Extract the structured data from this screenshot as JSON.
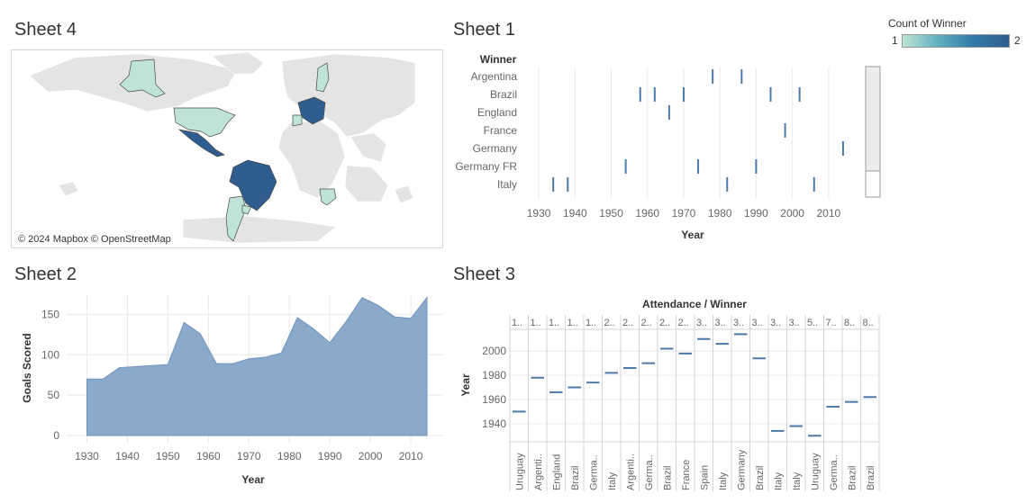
{
  "sheet4": {
    "title": "Sheet 4",
    "credit": "© 2024 Mapbox © OpenStreetMap"
  },
  "legend": {
    "title": "Count of Winner",
    "min_label": "1",
    "max_label": "2",
    "colors": {
      "low": "#bfe3d6",
      "high": "#2f5d8f"
    }
  },
  "colors": {
    "mark": "#4e79a7",
    "area_fill": "#8aa9cb",
    "area_stroke": "#6f93bd",
    "grid": "#e9e9e9",
    "text": "#666666"
  },
  "chart_data": [
    {
      "id": "sheet1",
      "title": "Sheet 1",
      "type": "scatter",
      "xlabel": "Year",
      "ylabel": "Winner",
      "categories": [
        "Argentina",
        "Brazil",
        "England",
        "France",
        "Germany",
        "Germany FR",
        "Italy"
      ],
      "points": [
        {
          "winner": "Argentina",
          "year": 1978
        },
        {
          "winner": "Argentina",
          "year": 1986
        },
        {
          "winner": "Brazil",
          "year": 1958
        },
        {
          "winner": "Brazil",
          "year": 1962
        },
        {
          "winner": "Brazil",
          "year": 1970
        },
        {
          "winner": "Brazil",
          "year": 1994
        },
        {
          "winner": "Brazil",
          "year": 2002
        },
        {
          "winner": "England",
          "year": 1966
        },
        {
          "winner": "France",
          "year": 1998
        },
        {
          "winner": "Germany",
          "year": 2014
        },
        {
          "winner": "Germany FR",
          "year": 1954
        },
        {
          "winner": "Germany FR",
          "year": 1974
        },
        {
          "winner": "Germany FR",
          "year": 1990
        },
        {
          "winner": "Italy",
          "year": 1934
        },
        {
          "winner": "Italy",
          "year": 1938
        },
        {
          "winner": "Italy",
          "year": 1982
        },
        {
          "winner": "Italy",
          "year": 2006
        }
      ],
      "xticks": [
        1930,
        1940,
        1950,
        1960,
        1970,
        1980,
        1990,
        2000,
        2010
      ],
      "xlim": [
        1925,
        2017
      ]
    },
    {
      "id": "sheet2",
      "title": "Sheet 2",
      "type": "area",
      "xlabel": "Year",
      "ylabel": "Goals Scored",
      "x": [
        1930,
        1934,
        1938,
        1950,
        1954,
        1958,
        1962,
        1966,
        1970,
        1974,
        1978,
        1982,
        1986,
        1990,
        1994,
        1998,
        2002,
        2006,
        2010,
        2014
      ],
      "y": [
        70,
        70,
        84,
        88,
        140,
        126,
        89,
        89,
        95,
        97,
        102,
        146,
        132,
        115,
        141,
        171,
        161,
        147,
        145,
        171
      ],
      "xticks": [
        1930,
        1940,
        1950,
        1960,
        1970,
        1980,
        1990,
        2000,
        2010
      ],
      "yticks": [
        0,
        50,
        100,
        150
      ],
      "xlim": [
        1925,
        2018
      ],
      "ylim": [
        -10,
        175
      ]
    },
    {
      "id": "sheet3",
      "title": "Sheet 3",
      "type": "scatter",
      "header": "Attendance / Winner",
      "ylabel": "Year",
      "attendance_labels": [
        "1..",
        "1..",
        "1..",
        "1..",
        "1..",
        "2..",
        "2..",
        "2..",
        "2..",
        "2..",
        "3..",
        "3..",
        "3..",
        "3..",
        "3..",
        "3..",
        "5..",
        "7..",
        "8..",
        "8.."
      ],
      "winners": [
        "Uruguay",
        "Argenti..",
        "England",
        "Brazil",
        "Germa..",
        "Italy",
        "Argenti..",
        "Germa..",
        "Brazil",
        "France",
        "Spain",
        "Italy",
        "Germany",
        "Brazil",
        "Italy",
        "Italy",
        "Uruguay",
        "Germa..",
        "Brazil",
        "Brazil"
      ],
      "years": [
        1950,
        1978,
        1966,
        1970,
        1974,
        1982,
        1986,
        1990,
        2002,
        1998,
        2010,
        2006,
        2014,
        1994,
        1934,
        1938,
        1930,
        1954,
        1958,
        1962
      ],
      "yticks": [
        1940,
        1960,
        1980,
        2000
      ],
      "ylim": [
        1925,
        2018
      ]
    }
  ]
}
